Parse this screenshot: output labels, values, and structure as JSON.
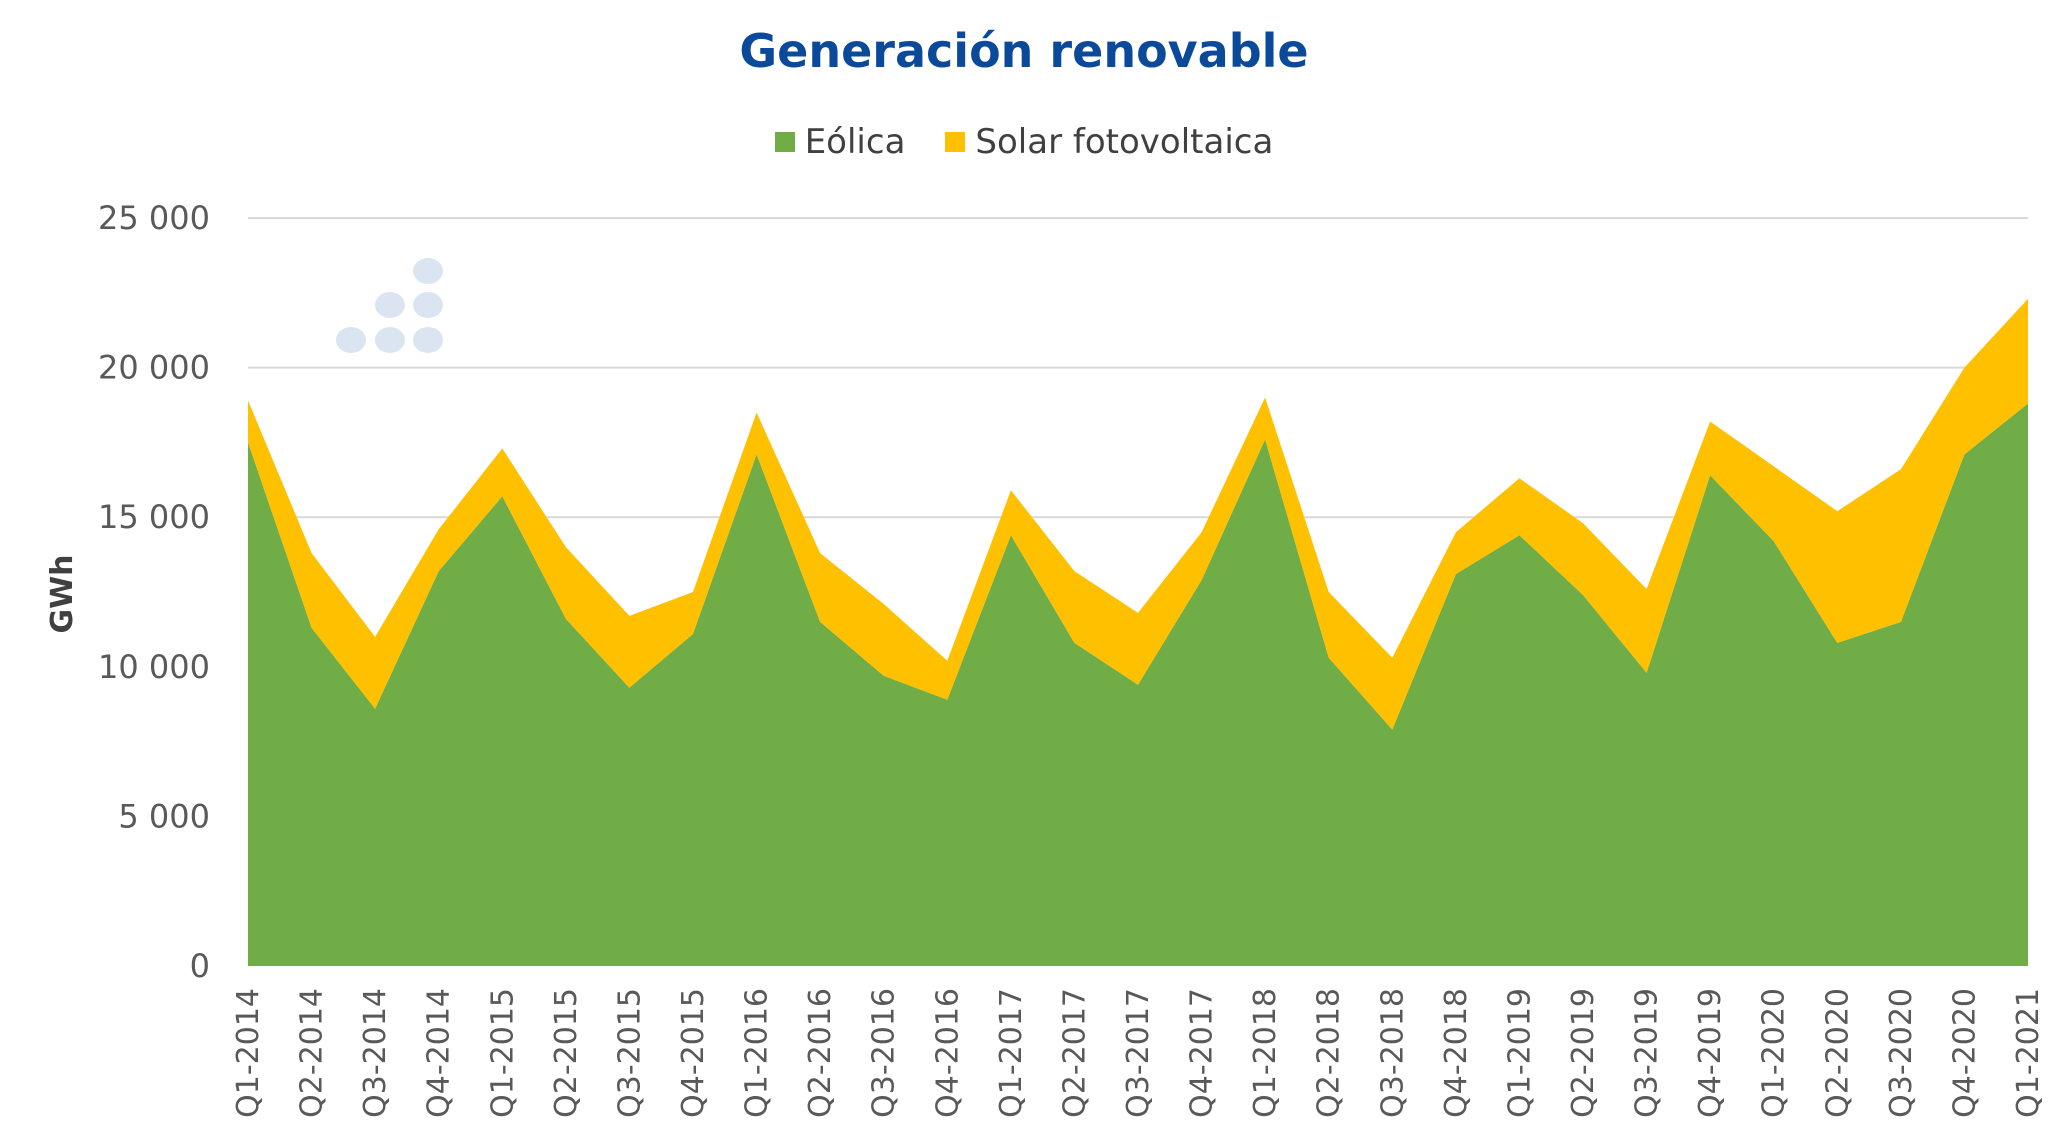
{
  "chart_data": {
    "type": "area",
    "stacked": true,
    "title": "Generación renovable",
    "xlabel": "",
    "ylabel": "GWh",
    "ylim": [
      0,
      25000
    ],
    "yticks": [
      0,
      5000,
      10000,
      15000,
      20000,
      25000
    ],
    "ytick_labels": [
      "0",
      "5 000",
      "10 000",
      "15 000",
      "20 000",
      "25 000"
    ],
    "grid": true,
    "legend_position": "top",
    "categories": [
      "Q1-2014",
      "Q2-2014",
      "Q3-2014",
      "Q4-2014",
      "Q1-2015",
      "Q2-2015",
      "Q3-2015",
      "Q4-2015",
      "Q1-2016",
      "Q2-2016",
      "Q3-2016",
      "Q4-2016",
      "Q1-2017",
      "Q2-2017",
      "Q3-2017",
      "Q4-2017",
      "Q1-2018",
      "Q2-2018",
      "Q3-2018",
      "Q4-2018",
      "Q1-2019",
      "Q2-2019",
      "Q3-2019",
      "Q4-2019",
      "Q1-2020",
      "Q2-2020",
      "Q3-2020",
      "Q4-2020",
      "Q1-2021"
    ],
    "series": [
      {
        "name": "Eólica",
        "color": "#70ad47",
        "values": [
          17500,
          11300,
          8600,
          13200,
          15700,
          11600,
          9300,
          11100,
          17100,
          11500,
          9700,
          8900,
          14400,
          10800,
          9400,
          12900,
          17600,
          10300,
          7900,
          13100,
          14400,
          12400,
          9800,
          16400,
          14200,
          10800,
          11500,
          17100,
          18800
        ]
      },
      {
        "name": "Solar fotovoltaica",
        "color": "#ffc000",
        "values": [
          1400,
          2500,
          2400,
          1400,
          1600,
          2400,
          2400,
          1400,
          1400,
          2300,
          2400,
          1300,
          1500,
          2400,
          2400,
          1600,
          1400,
          2200,
          2400,
          1400,
          1900,
          2400,
          2800,
          1800,
          2500,
          4400,
          5100,
          2900,
          3500
        ]
      }
    ]
  }
}
